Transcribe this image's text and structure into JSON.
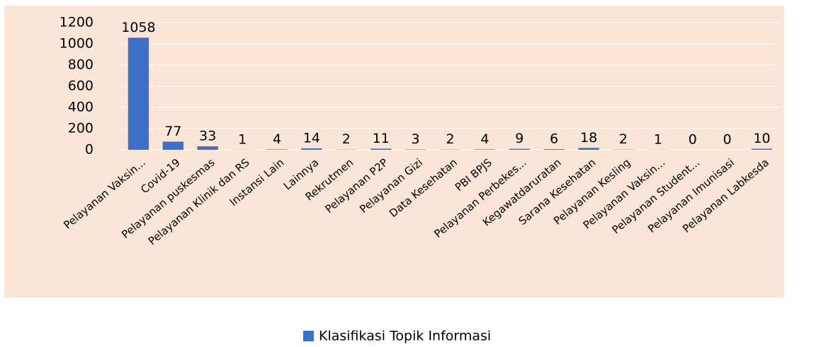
{
  "chart_data": {
    "type": "bar",
    "categories": [
      "Pelayanan Vaksin...",
      "Covid-19",
      "Pelayanan puskesmas",
      "Pelayanan Klinik dan RS",
      "Instansi Lain",
      "Lainnya",
      "Rekrutmen",
      "Pelayanan P2P",
      "Pelayanan Gizi",
      "Data Kesehatan",
      "PBI BPJS",
      "Pelayanan Perbekes...",
      "Kegawatdaruratan",
      "Sarana Kesehatan",
      "Pelayanan Kesling",
      "Pelayanan Vaksin...",
      "Pelayanan Student...",
      "Pelayanan Imunisasi",
      "Pelayanan Labkesda"
    ],
    "series": [
      {
        "name": "Klasifikasi Topik Informasi",
        "color": "#3f6ec6",
        "values": [
          1058,
          77,
          33,
          1,
          4,
          14,
          2,
          11,
          3,
          2,
          4,
          9,
          6,
          18,
          2,
          1,
          0,
          0,
          10
        ]
      }
    ],
    "ylim": [
      0,
      1200
    ],
    "yticks": [
      0,
      200,
      400,
      600,
      800,
      1000,
      1200
    ],
    "grid": true,
    "legend": "bottom"
  }
}
